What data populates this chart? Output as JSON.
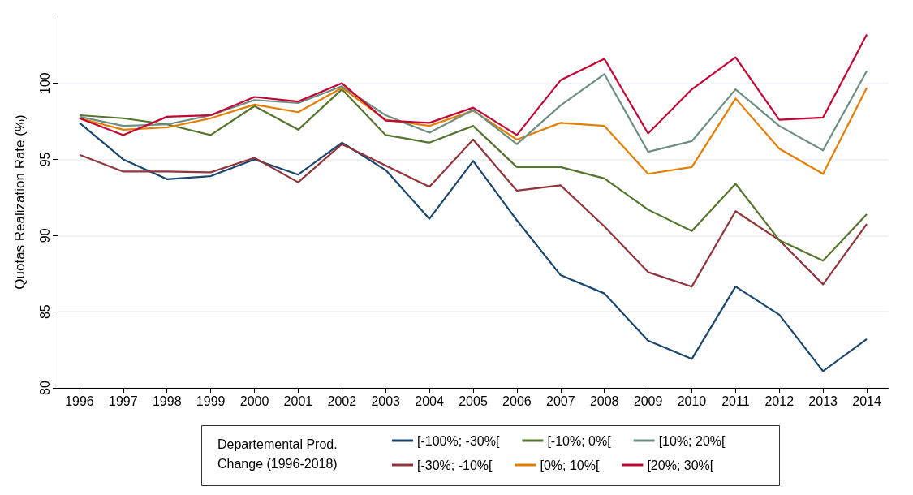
{
  "chart_data": {
    "type": "line",
    "ylabel": "Quotas Realization Rate (%)",
    "legend_title": "Departemental Prod. Change (1996-2018)",
    "categories": [
      "1996",
      "1997",
      "1998",
      "1999",
      "2000",
      "2001",
      "2002",
      "2003",
      "2004",
      "2005",
      "2006",
      "2007",
      "2008",
      "2009",
      "2010",
      "2011",
      "2012",
      "2013",
      "2014"
    ],
    "series": [
      {
        "name": "[-100%; -30%[",
        "color": "#1a476f",
        "values": [
          97.4,
          95.0,
          93.7,
          93.9,
          95.0,
          94.0,
          96.1,
          94.3,
          91.1,
          94.9,
          91.0,
          87.4,
          86.2,
          83.1,
          81.9,
          86.65,
          84.8,
          81.1,
          83.2
        ]
      },
      {
        "name": "[-30%; -10%[",
        "color": "#90353b",
        "values": [
          95.3,
          94.2,
          94.2,
          94.15,
          95.1,
          93.5,
          96.0,
          94.6,
          93.2,
          96.3,
          92.95,
          93.3,
          90.6,
          87.6,
          86.65,
          91.6,
          89.7,
          86.8,
          90.75
        ]
      },
      {
        "name": "[-10%; 0%[",
        "color": "#55752f",
        "values": [
          97.9,
          97.7,
          97.3,
          96.6,
          98.5,
          96.95,
          99.6,
          96.6,
          96.1,
          97.2,
          94.5,
          94.5,
          93.75,
          91.7,
          90.3,
          93.4,
          89.7,
          88.35,
          91.4
        ]
      },
      {
        "name": "[0%; 10%[",
        "color": "#e37e00",
        "values": [
          97.7,
          96.95,
          97.1,
          97.7,
          98.6,
          98.1,
          99.7,
          97.6,
          97.2,
          98.2,
          96.3,
          97.4,
          97.2,
          94.05,
          94.5,
          99.0,
          95.7,
          94.05,
          99.7
        ]
      },
      {
        "name": "[10%; 20%[",
        "color": "#6e8e84",
        "values": [
          97.8,
          97.2,
          97.3,
          97.9,
          98.9,
          98.7,
          99.8,
          97.9,
          96.75,
          98.25,
          96.0,
          98.55,
          100.6,
          95.5,
          96.2,
          99.6,
          97.2,
          95.6,
          100.8
        ]
      },
      {
        "name": "[20%; 30%[",
        "color": "#c10534",
        "values": [
          97.7,
          96.6,
          97.8,
          97.9,
          99.1,
          98.8,
          100.0,
          97.55,
          97.4,
          98.4,
          96.6,
          100.2,
          101.6,
          96.7,
          99.6,
          101.7,
          97.6,
          97.75,
          103.2
        ]
      }
    ],
    "ylim": [
      80,
      104.4
    ],
    "yticks": [
      80,
      85,
      90,
      95,
      100
    ],
    "grid": "y",
    "legend": "bottom",
    "marker": "none",
    "line_style": "solid"
  }
}
